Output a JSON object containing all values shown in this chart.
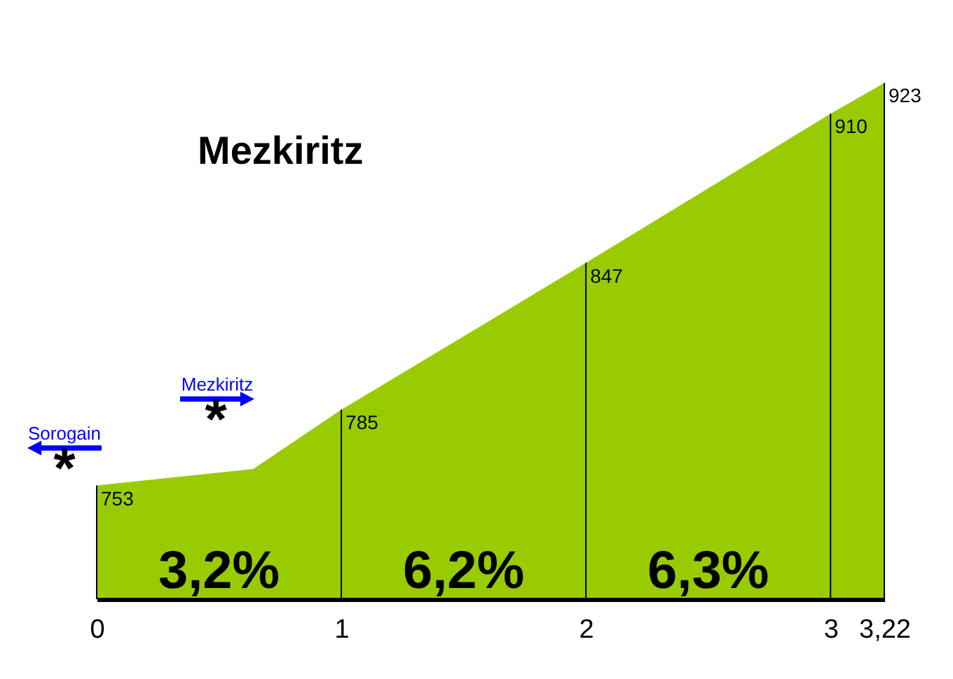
{
  "chart_data": {
    "type": "area",
    "title": "Mezkiritz",
    "x": [
      0,
      0.64,
      1,
      2,
      3,
      3.22
    ],
    "values": [
      753,
      760,
      785,
      847,
      910,
      923
    ],
    "value_labels": [
      "753",
      null,
      "785",
      "847",
      "910",
      "923"
    ],
    "color": "#99cc00",
    "xlim": [
      0,
      3.22
    ],
    "xticks": [
      0,
      1,
      2,
      3,
      {
        "value": 3.22,
        "label": "3,22"
      }
    ],
    "ylim": [
      705,
      958
    ],
    "tick_labels": "x",
    "annotations": [
      "Sorogain",
      "*",
      "Mezkiritz",
      "*",
      "3,2%",
      "6,2%",
      "6,3%"
    ]
  }
}
